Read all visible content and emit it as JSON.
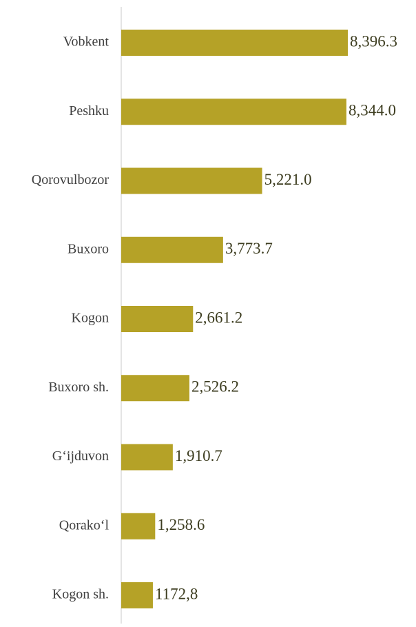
{
  "chart_data": {
    "type": "bar",
    "orientation": "horizontal",
    "color": "#b5a227",
    "categories": [
      "Vobkent",
      "Peshku",
      "Qorovulbozor",
      "Buxoro",
      "Kogon",
      "Buxoro sh.",
      "G‘ijduvon",
      "Qorako‘l",
      "Kogon sh."
    ],
    "values": [
      8396.3,
      8344.0,
      5221.0,
      3773.7,
      2661.2,
      2526.2,
      1910.7,
      1258.6,
      1172.8
    ],
    "value_labels": [
      "8,396.3",
      "8,344.0",
      "5,221.0",
      "3,773.7",
      "2,661.2",
      "2,526.2",
      "1,910.7",
      "1,258.6",
      "1172,8"
    ]
  }
}
